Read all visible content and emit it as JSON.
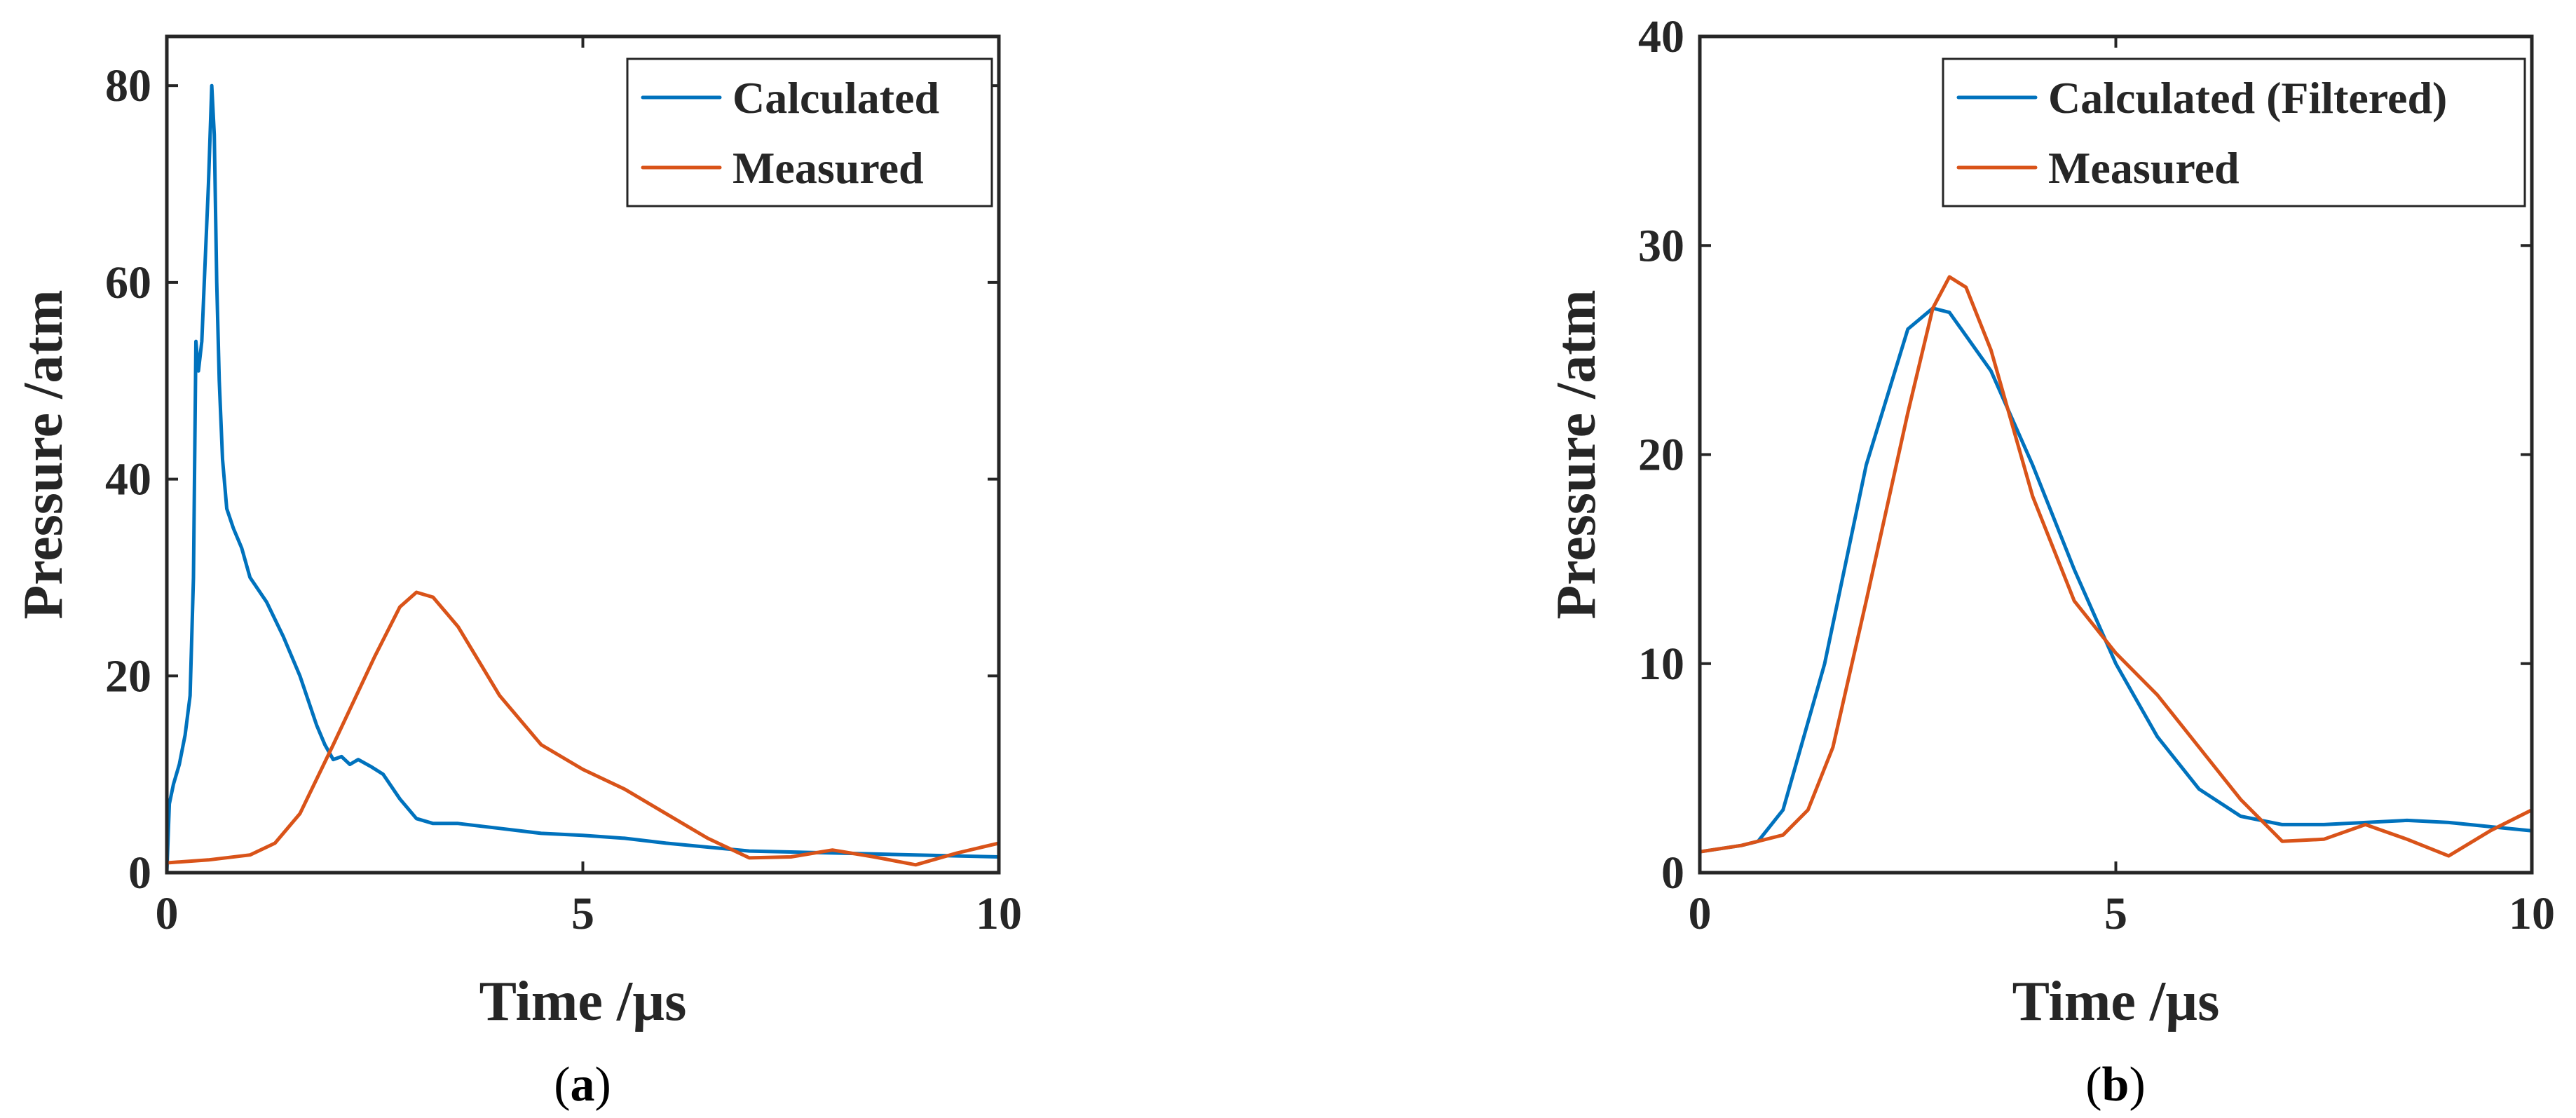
{
  "chart_data": [
    {
      "type": "line",
      "caption_letter": "a",
      "xlabel": "Time /µs",
      "ylabel": "Pressure /atm",
      "xlim": [
        0,
        10
      ],
      "ylim": [
        0,
        85
      ],
      "xticks": [
        0,
        5,
        10
      ],
      "yticks": [
        0,
        20,
        40,
        60,
        80
      ],
      "legend_position": "top-right",
      "grid": false,
      "series": [
        {
          "name": "Calculated",
          "color": "#0072BD",
          "x": [
            0,
            0.03,
            0.08,
            0.15,
            0.22,
            0.28,
            0.32,
            0.35,
            0.38,
            0.42,
            0.45,
            0.5,
            0.54,
            0.57,
            0.6,
            0.63,
            0.67,
            0.72,
            0.8,
            0.9,
            1.0,
            1.2,
            1.4,
            1.6,
            1.8,
            1.9,
            2.0,
            2.1,
            2.2,
            2.3,
            2.45,
            2.6,
            2.8,
            3.0,
            3.2,
            3.5,
            4.0,
            4.5,
            5.0,
            5.5,
            6.0,
            7.0,
            8.0,
            9.0,
            10.0
          ],
          "values": [
            0,
            7,
            9,
            11,
            14,
            18,
            30,
            54,
            51,
            54,
            60,
            70,
            80,
            75,
            60,
            50,
            42,
            37,
            35,
            33,
            30,
            27.5,
            24,
            20,
            15,
            13,
            11.5,
            11.8,
            11,
            11.5,
            10.8,
            10,
            7.5,
            5.5,
            5,
            5,
            4.5,
            4,
            3.8,
            3.5,
            3,
            2.2,
            2,
            1.8,
            1.6
          ]
        },
        {
          "name": "Measured",
          "color": "#D95319",
          "x": [
            0,
            0.5,
            1.0,
            1.3,
            1.6,
            2.0,
            2.5,
            2.8,
            3.0,
            3.2,
            3.5,
            4.0,
            4.5,
            5.0,
            5.5,
            6.0,
            6.5,
            7.0,
            7.5,
            8.0,
            8.5,
            9.0,
            9.5,
            10.0
          ],
          "values": [
            1,
            1.3,
            1.8,
            3,
            6,
            13,
            22,
            27,
            28.5,
            28,
            25,
            18,
            13,
            10.5,
            8.5,
            6,
            3.5,
            1.5,
            1.6,
            2.3,
            1.6,
            0.8,
            2,
            3
          ]
        }
      ]
    },
    {
      "type": "line",
      "caption_letter": "b",
      "xlabel": "Time /µs",
      "ylabel": "Pressure /atm",
      "xlim": [
        0,
        10
      ],
      "ylim": [
        0,
        40
      ],
      "xticks": [
        0,
        5,
        10
      ],
      "yticks": [
        0,
        10,
        20,
        30,
        40
      ],
      "legend_position": "top-right",
      "grid": false,
      "series": [
        {
          "name": "Calculated (Filtered)",
          "color": "#0072BD",
          "x": [
            0,
            0.5,
            0.7,
            1.0,
            1.5,
            2.0,
            2.5,
            2.8,
            3.0,
            3.5,
            4.0,
            4.5,
            5.0,
            5.5,
            6.0,
            6.5,
            7.0,
            7.5,
            8.0,
            8.5,
            9.0,
            9.5,
            10.0
          ],
          "values": [
            1,
            1.3,
            1.5,
            3,
            10,
            19.5,
            26,
            27,
            26.8,
            24,
            19.5,
            14.5,
            10,
            6.5,
            4,
            2.7,
            2.3,
            2.3,
            2.4,
            2.5,
            2.4,
            2.2,
            2
          ]
        },
        {
          "name": "Measured",
          "color": "#D95319",
          "x": [
            0,
            0.5,
            1.0,
            1.3,
            1.6,
            2.0,
            2.5,
            2.8,
            3.0,
            3.2,
            3.5,
            4.0,
            4.5,
            5.0,
            5.5,
            6.0,
            6.5,
            7.0,
            7.5,
            8.0,
            8.5,
            9.0,
            9.5,
            10.0
          ],
          "values": [
            1,
            1.3,
            1.8,
            3,
            6,
            13,
            22,
            27,
            28.5,
            28,
            25,
            18,
            13,
            10.5,
            8.5,
            6,
            3.5,
            1.5,
            1.6,
            2.3,
            1.6,
            0.8,
            2,
            3
          ]
        }
      ]
    }
  ]
}
